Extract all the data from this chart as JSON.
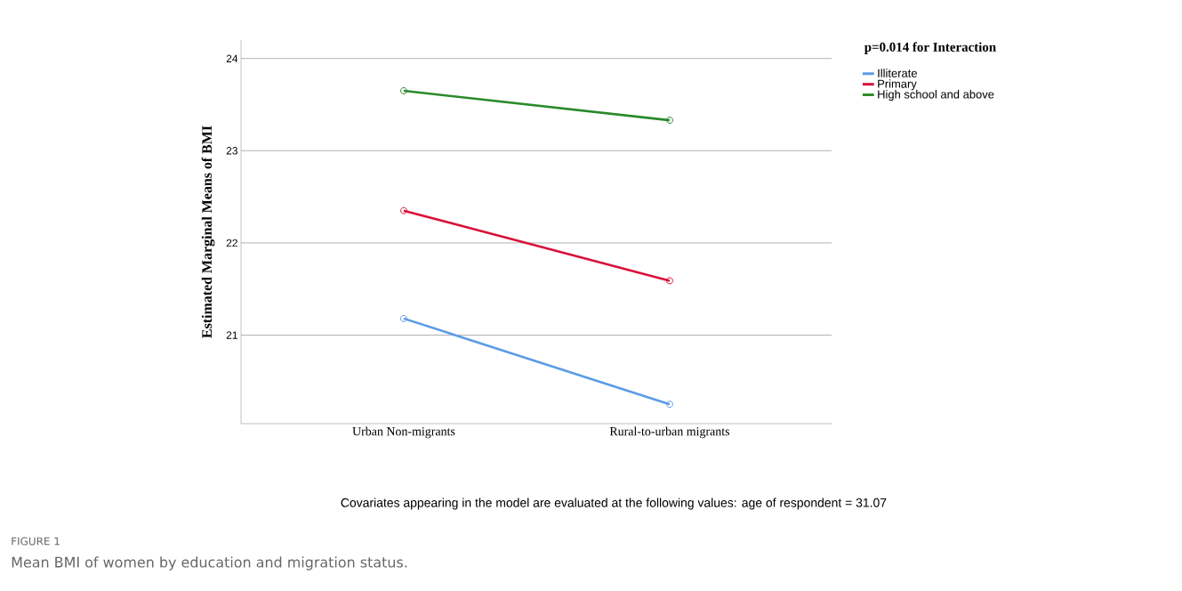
{
  "chart_data": {
    "type": "line",
    "ylabel": "Estimated Marginal Means of BMI",
    "legend_title": "p=0.014 for Interaction",
    "categories": [
      "Urban Non-migrants",
      "Rural-to-urban migrants"
    ],
    "series": [
      {
        "name": "Illiterate",
        "color": "#5b9be6",
        "values": [
          21.18,
          20.25
        ]
      },
      {
        "name": "Primary",
        "color": "#d8123a",
        "values": [
          22.35,
          21.59
        ]
      },
      {
        "name": "High school and above",
        "color": "#2a8a2a",
        "values": [
          23.65,
          23.33
        ]
      }
    ],
    "ylim": [
      20.04,
      24.2
    ],
    "yticks": [
      21,
      22,
      23,
      24
    ],
    "grid": "y",
    "legend": "top right",
    "marker": "circle",
    "line_style": "solid",
    "annotations": [
      "Covariates appearing in the model are evaluated at the following values: age of respondent = 31.07",
      "FIGURE 1",
      "Mean BMI of women by education and migration status."
    ]
  }
}
